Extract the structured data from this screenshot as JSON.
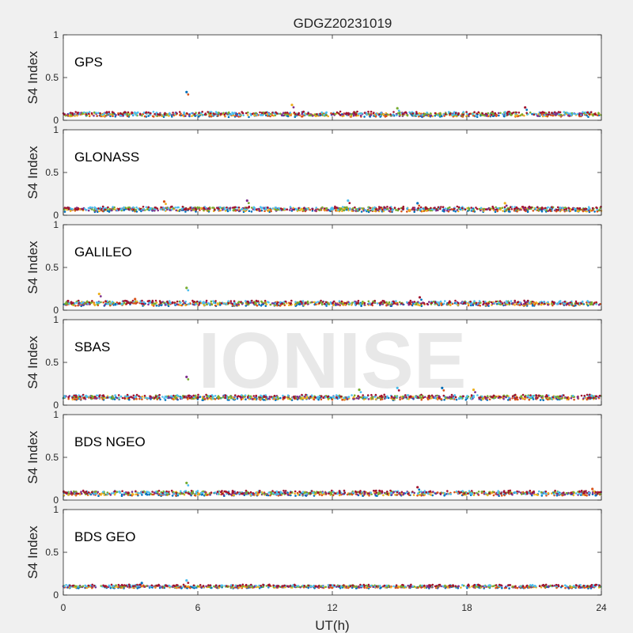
{
  "figure": {
    "title": "GDGZ20231019",
    "watermark": "IONISE",
    "background": "#f0f0f0",
    "axes_background": "#ffffff"
  },
  "chart_data": {
    "type": "scatter",
    "title": "GDGZ20231019",
    "xlabel": "UT(h)",
    "ylabel": "S4 Index",
    "xlim": [
      0,
      24
    ],
    "xticks": [
      0,
      6,
      12,
      18,
      24
    ],
    "ylim": [
      0,
      1
    ],
    "yticks": [
      0,
      0.5,
      1
    ],
    "ytick_labels": [
      "0",
      "0.5",
      "1"
    ],
    "grid": false,
    "series_colors": [
      "#0072bd",
      "#d95319",
      "#edb120",
      "#7e2f8e",
      "#77ac30",
      "#4dbeee",
      "#a2142f"
    ],
    "panels": [
      {
        "label": "GPS",
        "baseline": 0.07,
        "noise": 0.02,
        "annotations": [
          {
            "x": 5.5,
            "y": 0.33
          },
          {
            "x": 10.2,
            "y": 0.18
          },
          {
            "x": 14.9,
            "y": 0.14
          },
          {
            "x": 20.6,
            "y": 0.15
          }
        ]
      },
      {
        "label": "GLONASS",
        "baseline": 0.07,
        "noise": 0.02,
        "annotations": [
          {
            "x": 4.5,
            "y": 0.16
          },
          {
            "x": 8.2,
            "y": 0.17
          },
          {
            "x": 12.7,
            "y": 0.17
          },
          {
            "x": 15.8,
            "y": 0.14
          },
          {
            "x": 19.7,
            "y": 0.14
          }
        ]
      },
      {
        "label": "GALILEO",
        "baseline": 0.08,
        "noise": 0.02,
        "annotations": [
          {
            "x": 1.6,
            "y": 0.19
          },
          {
            "x": 5.5,
            "y": 0.26
          },
          {
            "x": 15.9,
            "y": 0.15
          },
          {
            "x": 3.2,
            "y": 0.13
          }
        ]
      },
      {
        "label": "SBAS",
        "baseline": 0.09,
        "noise": 0.02,
        "annotations": [
          {
            "x": 5.5,
            "y": 0.33
          },
          {
            "x": 14.9,
            "y": 0.2
          },
          {
            "x": 16.9,
            "y": 0.2
          },
          {
            "x": 18.3,
            "y": 0.18
          },
          {
            "x": 13.2,
            "y": 0.18
          }
        ]
      },
      {
        "label": "BDS NGEO",
        "baseline": 0.08,
        "noise": 0.02,
        "annotations": [
          {
            "x": 5.5,
            "y": 0.2
          },
          {
            "x": 15.8,
            "y": 0.15
          },
          {
            "x": 23.6,
            "y": 0.13
          }
        ]
      },
      {
        "label": "BDS GEO",
        "baseline": 0.1,
        "noise": 0.01,
        "annotations": [
          {
            "x": 5.5,
            "y": 0.17
          },
          {
            "x": 3.5,
            "y": 0.14
          }
        ]
      }
    ]
  }
}
